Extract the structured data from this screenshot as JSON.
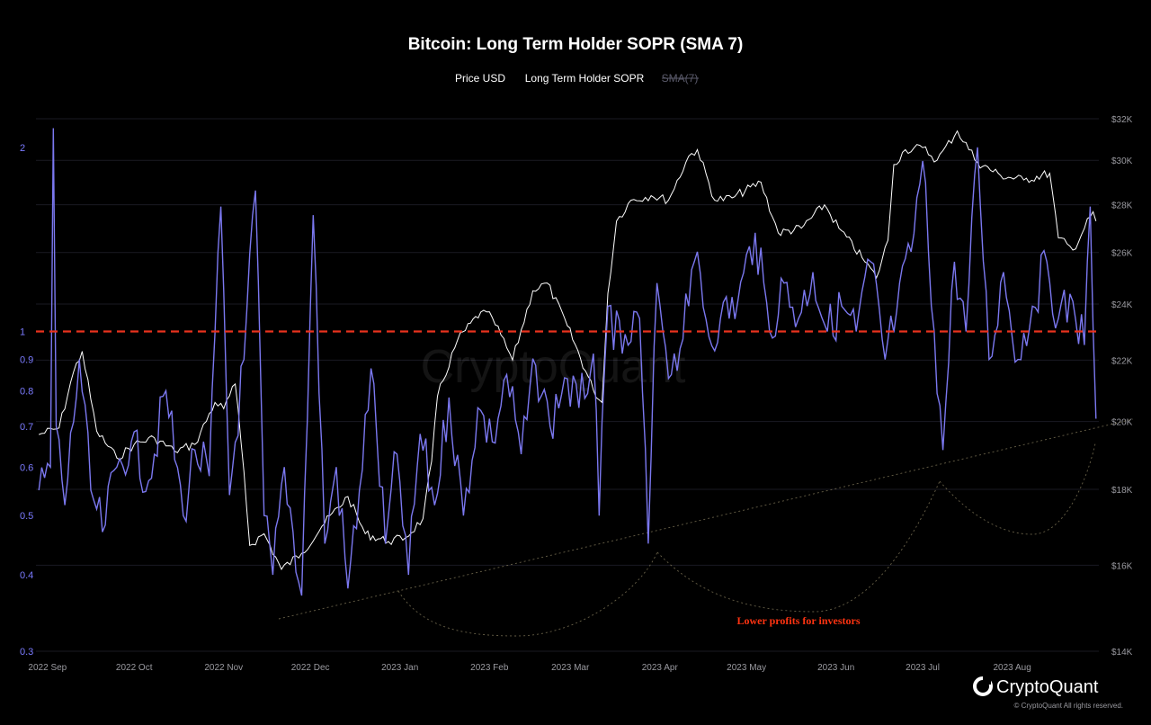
{
  "header": {
    "title": "Bitcoin: Long Term Holder SOPR (SMA 7)"
  },
  "legend": [
    {
      "label": "Price USD",
      "active": true
    },
    {
      "label": "Long Term Holder SOPR",
      "active": true
    },
    {
      "label": "SMA(7)",
      "active": false
    }
  ],
  "annotation": {
    "text": "Lower profits for investors"
  },
  "watermark": {
    "text": "CryptoQuant"
  },
  "footer": {
    "brand": "CryptoQuant",
    "copyright": "© CryptoQuant All rights reserved."
  },
  "colors": {
    "price": "#ffffff",
    "sopr": "#7b78f0",
    "threshold": "#e8321e",
    "trend": "#8a8060",
    "background": "#000000"
  },
  "chart_data": {
    "type": "line",
    "title": "Bitcoin: Long Term Holder SOPR (SMA 7)",
    "x_ticks": [
      "2022 Sep",
      "2022 Oct",
      "2022 Nov",
      "2022 Dec",
      "2023 Jan",
      "2023 Feb",
      "2023 Mar",
      "2023 Apr",
      "2023 May",
      "2023 Jun",
      "2023 Jul",
      "2023 Aug"
    ],
    "x_range": [
      "2022-08-28",
      "2023-08-31"
    ],
    "y_left": {
      "scale": "log",
      "ticks": [
        "2",
        "1",
        "0.9",
        "0.8",
        "0.7",
        "0.6",
        "0.5",
        "0.4",
        "0.3"
      ],
      "range": [
        0.3,
        2.4
      ]
    },
    "y_right": {
      "scale": "log",
      "ticks": [
        "$32K",
        "$30K",
        "$28K",
        "$26K",
        "$24K",
        "$22K",
        "$20K",
        "$18K",
        "$16K",
        "$14K"
      ],
      "range": [
        14000,
        33000
      ]
    },
    "threshold_line": 1,
    "series": [
      {
        "name": "Price USD",
        "axis": "right",
        "points": [
          [
            "2022-08-29",
            19600
          ],
          [
            "2022-09-05",
            19800
          ],
          [
            "2022-09-10",
            21600
          ],
          [
            "2022-09-13",
            22300
          ],
          [
            "2022-09-18",
            19700
          ],
          [
            "2022-09-25",
            18900
          ],
          [
            "2022-10-01",
            19300
          ],
          [
            "2022-10-08",
            19500
          ],
          [
            "2022-10-15",
            19100
          ],
          [
            "2022-10-22",
            19300
          ],
          [
            "2022-10-29",
            20600
          ],
          [
            "2022-11-01",
            20400
          ],
          [
            "2022-11-05",
            21200
          ],
          [
            "2022-11-08",
            18500
          ],
          [
            "2022-11-10",
            16500
          ],
          [
            "2022-11-15",
            16800
          ],
          [
            "2022-11-21",
            15900
          ],
          [
            "2022-11-28",
            16300
          ],
          [
            "2022-12-05",
            17000
          ],
          [
            "2022-12-14",
            17800
          ],
          [
            "2022-12-20",
            16800
          ],
          [
            "2022-12-28",
            16600
          ],
          [
            "2023-01-03",
            16700
          ],
          [
            "2023-01-09",
            17200
          ],
          [
            "2023-01-12",
            18800
          ],
          [
            "2023-01-14",
            20800
          ],
          [
            "2023-01-21",
            22700
          ],
          [
            "2023-01-29",
            23700
          ],
          [
            "2023-02-02",
            23500
          ],
          [
            "2023-02-09",
            22000
          ],
          [
            "2023-02-16",
            24500
          ],
          [
            "2023-02-21",
            24800
          ],
          [
            "2023-02-28",
            23200
          ],
          [
            "2023-03-09",
            21000
          ],
          [
            "2023-03-12",
            20600
          ],
          [
            "2023-03-14",
            24400
          ],
          [
            "2023-03-17",
            27300
          ],
          [
            "2023-03-22",
            28200
          ],
          [
            "2023-03-29",
            28400
          ],
          [
            "2023-04-04",
            28200
          ],
          [
            "2023-04-11",
            30200
          ],
          [
            "2023-04-14",
            30500
          ],
          [
            "2023-04-20",
            28200
          ],
          [
            "2023-04-26",
            28300
          ],
          [
            "2023-05-06",
            29000
          ],
          [
            "2023-05-12",
            26800
          ],
          [
            "2023-05-20",
            27000
          ],
          [
            "2023-05-28",
            28000
          ],
          [
            "2023-06-02",
            27000
          ],
          [
            "2023-06-10",
            25800
          ],
          [
            "2023-06-15",
            25000
          ],
          [
            "2023-06-19",
            26500
          ],
          [
            "2023-06-21",
            29800
          ],
          [
            "2023-06-25",
            30500
          ],
          [
            "2023-07-01",
            30600
          ],
          [
            "2023-07-06",
            30000
          ],
          [
            "2023-07-13",
            31400
          ],
          [
            "2023-07-20",
            29900
          ],
          [
            "2023-07-28",
            29300
          ],
          [
            "2023-08-05",
            29100
          ],
          [
            "2023-08-14",
            29400
          ],
          [
            "2023-08-17",
            26600
          ],
          [
            "2023-08-22",
            26100
          ],
          [
            "2023-08-29",
            27700
          ],
          [
            "2023-08-30",
            27300
          ]
        ]
      },
      {
        "name": "Long Term Holder SOPR",
        "axis": "left",
        "points": [
          [
            "2022-08-29",
            0.55
          ],
          [
            "2022-09-02",
            0.6
          ],
          [
            "2022-09-03",
            2.15
          ],
          [
            "2022-09-04",
            0.7
          ],
          [
            "2022-09-07",
            0.52
          ],
          [
            "2022-09-12",
            0.9
          ],
          [
            "2022-09-16",
            0.55
          ],
          [
            "2022-09-20",
            0.47
          ],
          [
            "2022-09-25",
            0.6
          ],
          [
            "2022-09-30",
            0.66
          ],
          [
            "2022-10-06",
            0.57
          ],
          [
            "2022-10-12",
            0.8
          ],
          [
            "2022-10-18",
            0.5
          ],
          [
            "2022-10-22",
            0.64
          ],
          [
            "2022-10-27",
            0.58
          ],
          [
            "2022-10-31",
            1.6
          ],
          [
            "2022-11-03",
            0.54
          ],
          [
            "2022-11-08",
            0.9
          ],
          [
            "2022-11-12",
            1.7
          ],
          [
            "2022-11-15",
            0.5
          ],
          [
            "2022-11-18",
            0.4
          ],
          [
            "2022-11-22",
            0.6
          ],
          [
            "2022-11-28",
            0.37
          ],
          [
            "2022-12-02",
            1.55
          ],
          [
            "2022-12-06",
            0.45
          ],
          [
            "2022-12-10",
            0.6
          ],
          [
            "2022-12-14",
            0.38
          ],
          [
            "2022-12-18",
            0.55
          ],
          [
            "2022-12-22",
            0.87
          ],
          [
            "2022-12-27",
            0.45
          ],
          [
            "2022-12-31",
            0.63
          ],
          [
            "2023-01-04",
            0.4
          ],
          [
            "2023-01-08",
            0.68
          ],
          [
            "2023-01-13",
            0.52
          ],
          [
            "2023-01-18",
            0.78
          ],
          [
            "2023-01-23",
            0.5
          ],
          [
            "2023-01-28",
            0.75
          ],
          [
            "2023-02-02",
            0.66
          ],
          [
            "2023-02-07",
            0.85
          ],
          [
            "2023-02-12",
            0.63
          ],
          [
            "2023-02-17",
            0.88
          ],
          [
            "2023-02-22",
            0.7
          ],
          [
            "2023-02-27",
            0.84
          ],
          [
            "2023-03-04",
            0.75
          ],
          [
            "2023-03-09",
            0.92
          ],
          [
            "2023-03-11",
            0.5
          ],
          [
            "2023-03-14",
            1.1
          ],
          [
            "2023-03-19",
            0.92
          ],
          [
            "2023-03-25",
            1.05
          ],
          [
            "2023-03-28",
            0.45
          ],
          [
            "2023-03-31",
            1.2
          ],
          [
            "2023-04-05",
            0.85
          ],
          [
            "2023-04-11",
            1.1
          ],
          [
            "2023-04-14",
            1.35
          ],
          [
            "2023-04-18",
            0.98
          ],
          [
            "2023-04-22",
            1.05
          ],
          [
            "2023-04-28",
            1.12
          ],
          [
            "2023-05-04",
            1.45
          ],
          [
            "2023-05-09",
            1.0
          ],
          [
            "2023-05-14",
            1.2
          ],
          [
            "2023-05-19",
            1.05
          ],
          [
            "2023-05-24",
            1.25
          ],
          [
            "2023-05-29",
            1.0
          ],
          [
            "2023-06-03",
            1.1
          ],
          [
            "2023-06-08",
            1.0
          ],
          [
            "2023-06-13",
            1.3
          ],
          [
            "2023-06-18",
            0.9
          ],
          [
            "2023-06-22",
            1.08
          ],
          [
            "2023-06-27",
            1.35
          ],
          [
            "2023-07-01",
            1.9
          ],
          [
            "2023-07-05",
            1.0
          ],
          [
            "2023-07-08",
            0.64
          ],
          [
            "2023-07-12",
            1.3
          ],
          [
            "2023-07-16",
            1.0
          ],
          [
            "2023-07-20",
            2.0
          ],
          [
            "2023-07-24",
            0.9
          ],
          [
            "2023-07-29",
            1.25
          ],
          [
            "2023-08-03",
            0.9
          ],
          [
            "2023-08-08",
            1.1
          ],
          [
            "2023-08-13",
            1.3
          ],
          [
            "2023-08-17",
            1.05
          ],
          [
            "2023-08-22",
            1.12
          ],
          [
            "2023-08-26",
            0.95
          ],
          [
            "2023-08-28",
            1.6
          ],
          [
            "2023-08-30",
            0.72
          ]
        ]
      }
    ],
    "annotations": [
      {
        "text": "Lower profits for investors"
      }
    ]
  }
}
